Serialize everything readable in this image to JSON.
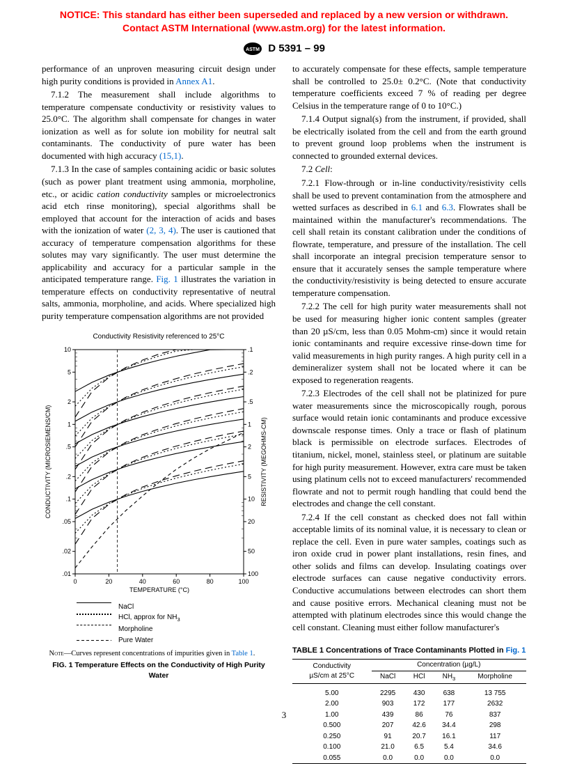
{
  "notice": "NOTICE: This standard has either been superseded and replaced by a new version or withdrawn.  Contact ASTM International (www.astm.org) for the latest information.",
  "standard_designation": "D 5391 – 99",
  "left_column": {
    "p1_a": "performance of an unproven measuring circuit design under high purity conditions is provided in ",
    "p1_link": "Annex A1",
    "p1_b": ".",
    "p2_a": "7.1.2 The measurement shall include algorithms to temperature compensate conductivity or resistivity values to 25.0°C. The algorithm shall compensate for changes in water ionization as well as for solute ion mobility for neutral salt contaminants. The conductivity of pure water has been documented with high accuracy ",
    "p2_link": "(15,1)",
    "p2_b": ".",
    "p3_a": "7.1.3 In the case of samples containing acidic or basic solutes (such as power plant treatment using ammonia, morpholine, etc., or acidic ",
    "p3_i": "cation conductivity",
    "p3_b": " samples or microelectronics acid etch rinse monitoring), special algorithms shall be employed that account for the interaction of acids and bases with the ionization of water ",
    "p3_link1": "(2, 3, 4)",
    "p3_c": ". The user is cautioned that accuracy of temperature compensation algorithms for these solutes may vary significantly. The user must determine the applicability and accuracy for a particular sample in the anticipated temperature range. ",
    "p3_link2": "Fig. 1",
    "p3_d": " illustrates the variation in temperature effects on conductivity representative of neutral salts, ammonia, morpholine, and acids. Where specialized high purity temperature compensation algorithms are not provided"
  },
  "right_column": {
    "p1": "to accurately compensate for these effects, sample temperature shall be controlled to 25.0± 0.2°C. (Note that conductivity temperature coefficients exceed 7 % of reading per degree Celsius in the temperature range of 0 to 10°C.)",
    "p2": "7.1.4 Output signal(s) from the instrument, if provided, shall be electrically isolated from the cell and from the earth ground to prevent ground loop problems when the instrument is connected to grounded external devices.",
    "p3_a": "7.2 ",
    "p3_i": "Cell",
    "p3_b": ":",
    "p4_a": "7.2.1 Flow-through or in-line conductivity/resistivity cells shall be used to prevent contamination from the atmosphere and wetted surfaces as described in ",
    "p4_link1": "6.1",
    "p4_mid": " and ",
    "p4_link2": "6.3",
    "p4_b": ". Flowrates shall be maintained within the manufacturer's recommendations. The cell shall retain its constant calibration under the conditions of flowrate, temperature, and pressure of the installation. The cell shall incorporate an integral precision temperature sensor to ensure that it accurately senses the sample temperature where the conductivity/resistivity is being detected to ensure accurate temperature compensation.",
    "p5": "7.2.2 The cell for high purity water measurements shall not be used for measuring higher ionic content samples (greater than 20 µS/cm, less than 0.05 Mohm-cm) since it would retain ionic contaminants and require excessive rinse-down time for valid measurements in high purity ranges. A high purity cell in a demineralizer system shall not be located where it can be exposed to regeneration reagents.",
    "p6": "7.2.3 Electrodes of the cell shall not be platinized for pure water measurements since the microscopically rough, porous surface would retain ionic contaminants and produce excessive downscale response times. Only a trace or flash of platinum black is permissible on electrode surfaces. Electrodes of titanium, nickel, monel, stainless steel, or platinum are suitable for high purity measurement. However, extra care must be taken using platinum cells not to exceed manufacturers' recommended flowrate and not to permit rough handling that could bend the electrodes and change the cell constant.",
    "p7": "7.2.4 If the cell constant as checked does not fall within acceptable limits of its nominal value, it is necessary to clean or replace the cell. Even in pure water samples, coatings such as iron oxide crud in power plant installations, resin fines, and other solids and films can develop. Insulating coatings over electrode surfaces can cause negative conductivity errors. Conductive accumulations between electrodes can short them and cause positive errors. Mechanical cleaning must not be attempted with platinum electrodes since this would change the cell constant. Cleaning must either follow manufacturer's"
  },
  "figure": {
    "chart_title": "Conductivity Resistivity referenced to 25°C",
    "x_label": "TEMPERATURE (°C)",
    "y_label_left": "CONDUCTIVITY (MICROSIEMENS/CM)",
    "y_label_right": "RESISTIVITY (MEGOHMS-CM)",
    "x_ticks": [
      0,
      20,
      40,
      60,
      80,
      100
    ],
    "y_ticks_left": [
      ".01",
      ".02",
      ".05",
      ".1",
      ".2",
      ".5",
      "1",
      "2",
      "5",
      "10"
    ],
    "y_ticks_right": [
      "100",
      "50",
      "20",
      "10",
      "5",
      "2",
      "1",
      ".5",
      ".2",
      ".1"
    ],
    "vref_x": 25,
    "background_color": "#ffffff",
    "axis_color": "#000000",
    "grid_color": "#000000",
    "legend": [
      {
        "label": "NaCl",
        "dash": "none"
      },
      {
        "label": "HCl, approx for NH₃",
        "dash": "dot"
      },
      {
        "label": "Morpholine",
        "dash": "longdash"
      },
      {
        "label": "Pure Water",
        "dash": "shortdash"
      }
    ],
    "note_a": "NOTE—Curves represent concentrations of impurities given in ",
    "note_link": "Table 1",
    "note_b": ".",
    "caption": "FIG. 1 Temperature Effects on the Conductivity of High Purity Water"
  },
  "table": {
    "title_a": "TABLE 1  Concentrations of Trace Contaminants Plotted in ",
    "title_link": "Fig. 1",
    "header_left": "Conductivity\nµS/cm at 25°C",
    "header_group": "Concentration (µg/L)",
    "columns": [
      "NaCl",
      "HCl",
      "NH3",
      "Morpholine"
    ],
    "rows": [
      [
        "5.00",
        "2295",
        "430",
        "638",
        "13 755"
      ],
      [
        "2.00",
        "903",
        "172",
        "177",
        "2632"
      ],
      [
        "1.00",
        "439",
        "86",
        "76",
        "837"
      ],
      [
        "0.500",
        "207",
        "42.6",
        "34.4",
        "298"
      ],
      [
        "0.250",
        "91",
        "20.7",
        "16.1",
        "117"
      ],
      [
        "0.100",
        "21.0",
        "6.5",
        "5.4",
        "34.6"
      ],
      [
        "0.055",
        "0.0",
        "0.0",
        "0.0",
        "0.0"
      ]
    ]
  },
  "page_number": "3"
}
